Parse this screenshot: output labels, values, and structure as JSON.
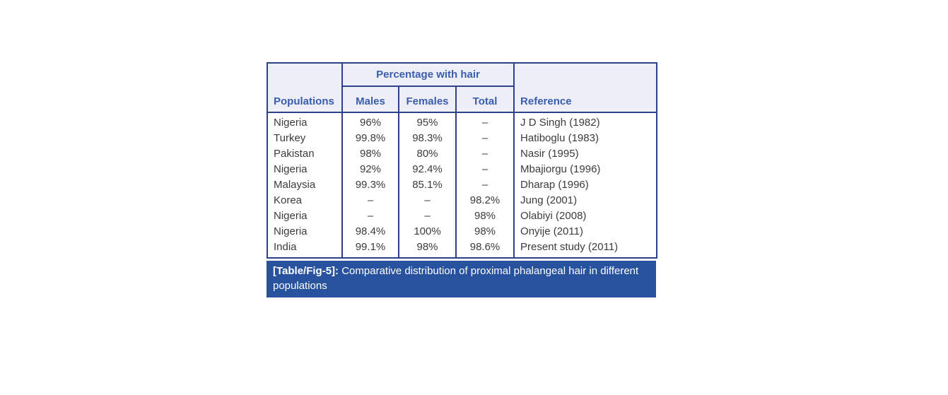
{
  "theme": {
    "border": "#2d4289",
    "header-bg": "#edeef7",
    "header-text": "#3a5dae",
    "body-text": "#3c3c3c",
    "caption-bg": "#28529e",
    "caption-text": "#ffffff",
    "page-bg": "#ffffff"
  },
  "table": {
    "header": {
      "group_label": "Percentage with hair",
      "columns": [
        "Populations",
        "Males",
        "Females",
        "Total",
        "Reference"
      ]
    },
    "rows": [
      {
        "population": "Nigeria",
        "males": "96%",
        "females": "95%",
        "total": "–",
        "reference": "J D Singh (1982)"
      },
      {
        "population": "Turkey",
        "males": "99.8%",
        "females": "98.3%",
        "total": "–",
        "reference": "Hatiboglu (1983)"
      },
      {
        "population": "Pakistan",
        "males": "98%",
        "females": "80%",
        "total": "–",
        "reference": "Nasir (1995)"
      },
      {
        "population": "Nigeria",
        "males": "92%",
        "females": "92.4%",
        "total": "–",
        "reference": "Mbajiorgu (1996)"
      },
      {
        "population": "Malaysia",
        "males": "99.3%",
        "females": "85.1%",
        "total": "–",
        "reference": "Dharap (1996)"
      },
      {
        "population": "Korea",
        "males": "–",
        "females": "–",
        "total": "98.2%",
        "reference": "Jung (2001)"
      },
      {
        "population": "Nigeria",
        "males": "–",
        "females": "–",
        "total": "98%",
        "reference": "Olabiyi (2008)"
      },
      {
        "population": "Nigeria",
        "males": "98.4%",
        "females": "100%",
        "total": "98%",
        "reference": "Onyije (2011)"
      },
      {
        "population": "India",
        "males": "99.1%",
        "females": "98%",
        "total": "98.6%",
        "reference": "Present study (2011)"
      }
    ],
    "caption": {
      "label": "[Table/Fig-5]:",
      "text": " Comparative distribution of proximal phalangeal hair in different populations"
    }
  }
}
